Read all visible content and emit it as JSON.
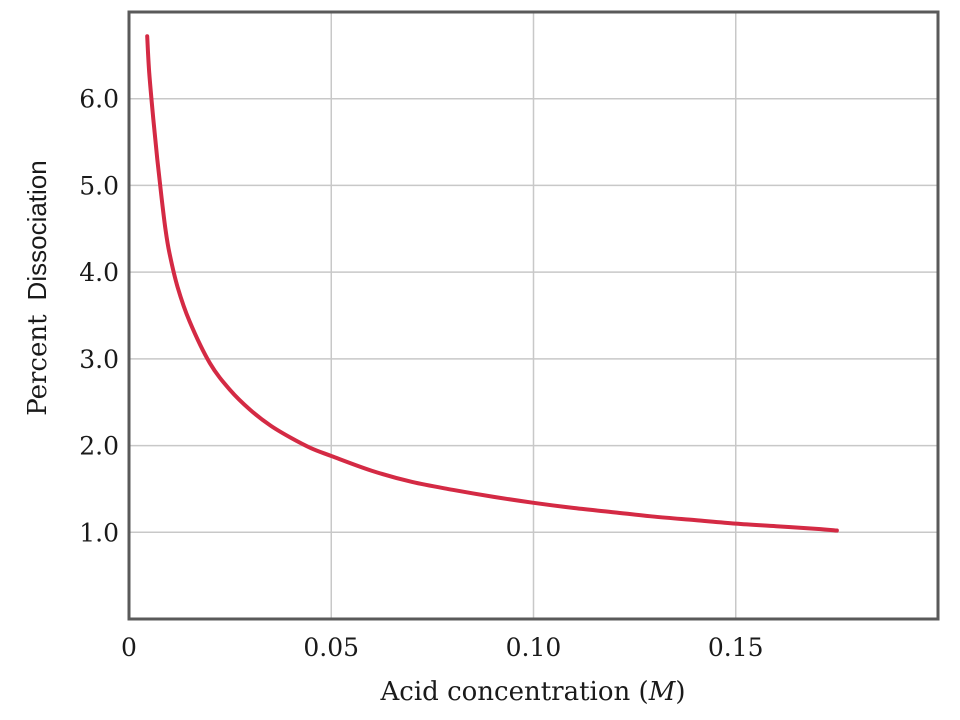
{
  "chart_data": {
    "type": "line",
    "title": "",
    "xlabel": "Acid concentration (M)",
    "xlabel_parts": [
      "Acid concentration (",
      "M",
      ")"
    ],
    "ylabel": "Percent Dissociation",
    "ylabel_parts": [
      "Percent",
      "Dissociation"
    ],
    "xlim": [
      0,
      0.2
    ],
    "ylim": [
      0,
      7.0
    ],
    "x_ticks": [
      0,
      0.05,
      0.1,
      0.15
    ],
    "x_tick_labels": [
      "0",
      "0.05",
      "0.10",
      "0.15"
    ],
    "y_ticks": [
      1.0,
      2.0,
      3.0,
      4.0,
      5.0,
      6.0
    ],
    "y_tick_labels": [
      "1.0",
      "2.0",
      "3.0",
      "4.0",
      "5.0",
      "6.0"
    ],
    "x_grid": [
      0.05,
      0.1,
      0.15
    ],
    "grid": true,
    "legend": "none",
    "colors": {
      "series": "#d42a44",
      "grid": "#c8c8c8",
      "frame": "#5a5a5a"
    },
    "series": [
      {
        "color": "#d42a44",
        "points": [
          [
            0.0045,
            6.72
          ],
          [
            0.005,
            6.3
          ],
          [
            0.006,
            5.77
          ],
          [
            0.007,
            5.3
          ],
          [
            0.008,
            4.88
          ],
          [
            0.009,
            4.5
          ],
          [
            0.01,
            4.22
          ],
          [
            0.012,
            3.83
          ],
          [
            0.015,
            3.43
          ],
          [
            0.02,
            2.95
          ],
          [
            0.025,
            2.64
          ],
          [
            0.03,
            2.41
          ],
          [
            0.035,
            2.23
          ],
          [
            0.04,
            2.09
          ],
          [
            0.045,
            1.97
          ],
          [
            0.05,
            1.88
          ],
          [
            0.06,
            1.71
          ],
          [
            0.07,
            1.58
          ],
          [
            0.08,
            1.49
          ],
          [
            0.09,
            1.41
          ],
          [
            0.1,
            1.34
          ],
          [
            0.11,
            1.28
          ],
          [
            0.12,
            1.23
          ],
          [
            0.13,
            1.18
          ],
          [
            0.14,
            1.14
          ],
          [
            0.15,
            1.1
          ],
          [
            0.16,
            1.07
          ],
          [
            0.17,
            1.04
          ],
          [
            0.175,
            1.02
          ]
        ]
      }
    ]
  }
}
